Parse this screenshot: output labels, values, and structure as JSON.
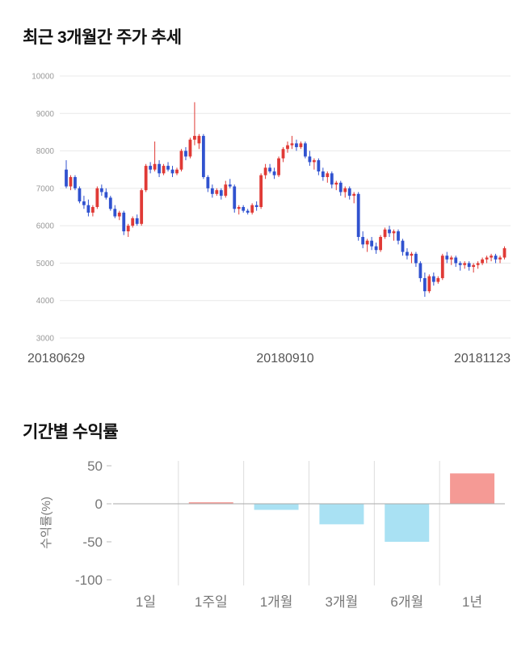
{
  "page": {
    "background": "#ffffff"
  },
  "sections": [
    {
      "title": "최근 3개월간 주가 추세"
    },
    {
      "title": "기간별 수익률"
    }
  ],
  "chart_data": [
    {
      "type": "candlestick",
      "title": "최근 3개월간 주가 추세",
      "ylim": [
        3000,
        10000
      ],
      "yticks": [
        10000,
        9000,
        8000,
        7000,
        6000,
        5000,
        4000,
        3000
      ],
      "xtick_labels": [
        "20180629",
        "20180910",
        "20181123"
      ],
      "up_color": "#e03a36",
      "down_color": "#3052cf",
      "grid_color": "#e9e9e9",
      "axis_text_color": "#999999",
      "label_color": "#555555",
      "grid": true,
      "candles": [
        [
          7500,
          7750,
          7000,
          7050
        ],
        [
          7050,
          7350,
          6950,
          7300
        ],
        [
          7300,
          7350,
          6950,
          7000
        ],
        [
          7000,
          7050,
          6600,
          6650
        ],
        [
          6650,
          6800,
          6450,
          6550
        ],
        [
          6550,
          6700,
          6250,
          6350
        ],
        [
          6350,
          6550,
          6250,
          6500
        ],
        [
          6500,
          7050,
          6450,
          7000
        ],
        [
          7000,
          7100,
          6800,
          6900
        ],
        [
          6900,
          7000,
          6700,
          6750
        ],
        [
          6750,
          6800,
          6400,
          6450
        ],
        [
          6450,
          6550,
          6200,
          6250
        ],
        [
          6250,
          6400,
          6150,
          6350
        ],
        [
          6350,
          6400,
          5750,
          5850
        ],
        [
          5850,
          6050,
          5700,
          6000
        ],
        [
          6000,
          6250,
          5950,
          6200
        ],
        [
          6200,
          6300,
          6000,
          6050
        ],
        [
          6050,
          7000,
          6000,
          6950
        ],
        [
          6950,
          7650,
          6900,
          7600
        ],
        [
          7600,
          7700,
          7400,
          7500
        ],
        [
          7500,
          8250,
          7450,
          7650
        ],
        [
          7650,
          7750,
          7300,
          7400
        ],
        [
          7400,
          7650,
          7350,
          7600
        ],
        [
          7600,
          7700,
          7450,
          7500
        ],
        [
          7500,
          7600,
          7300,
          7400
        ],
        [
          7400,
          7550,
          7350,
          7500
        ],
        [
          7500,
          8050,
          7450,
          8000
        ],
        [
          8000,
          8100,
          7750,
          7850
        ],
        [
          7850,
          8350,
          7800,
          8300
        ],
        [
          8300,
          9300,
          8150,
          8400
        ],
        [
          8200,
          8450,
          8050,
          8400
        ],
        [
          8400,
          8450,
          7250,
          7300
        ],
        [
          7300,
          7350,
          6900,
          7000
        ],
        [
          7000,
          7100,
          6750,
          6850
        ],
        [
          6850,
          7000,
          6800,
          6950
        ],
        [
          6950,
          7000,
          6700,
          6800
        ],
        [
          6800,
          7200,
          6750,
          7100
        ],
        [
          7100,
          7250,
          7000,
          7050
        ],
        [
          7050,
          7100,
          6350,
          6450
        ],
        [
          6450,
          6550,
          6300,
          6500
        ],
        [
          6500,
          6550,
          6350,
          6400
        ],
        [
          6400,
          6450,
          6300,
          6350
        ],
        [
          6350,
          6600,
          6300,
          6550
        ],
        [
          6550,
          6650,
          6400,
          6500
        ],
        [
          6500,
          7400,
          6450,
          7350
        ],
        [
          7350,
          7650,
          7250,
          7550
        ],
        [
          7550,
          7650,
          7400,
          7450
        ],
        [
          7450,
          7550,
          7250,
          7350
        ],
        [
          7350,
          7850,
          7300,
          7800
        ],
        [
          7800,
          8100,
          7700,
          8050
        ],
        [
          8050,
          8250,
          7950,
          8150
        ],
        [
          8150,
          8400,
          8050,
          8200
        ],
        [
          8200,
          8300,
          8000,
          8100
        ],
        [
          8100,
          8250,
          8050,
          8200
        ],
        [
          8200,
          8250,
          7800,
          7850
        ],
        [
          7850,
          8000,
          7600,
          7700
        ],
        [
          7700,
          7800,
          7500,
          7750
        ],
        [
          7750,
          7800,
          7350,
          7450
        ],
        [
          7450,
          7550,
          7200,
          7300
        ],
        [
          7300,
          7450,
          7150,
          7400
        ],
        [
          7400,
          7450,
          7000,
          7100
        ],
        [
          7100,
          7200,
          6950,
          7150
        ],
        [
          7150,
          7200,
          6800,
          6900
        ],
        [
          6900,
          7050,
          6750,
          7000
        ],
        [
          7000,
          7050,
          6700,
          6800
        ],
        [
          6800,
          6900,
          6600,
          6850
        ],
        [
          6850,
          6900,
          5600,
          5700
        ],
        [
          5700,
          5850,
          5400,
          5500
        ],
        [
          5500,
          5650,
          5300,
          5600
        ],
        [
          5600,
          5700,
          5350,
          5450
        ],
        [
          5450,
          5550,
          5250,
          5350
        ],
        [
          5350,
          5750,
          5300,
          5700
        ],
        [
          5700,
          5950,
          5650,
          5900
        ],
        [
          5900,
          6000,
          5700,
          5800
        ],
        [
          5800,
          5900,
          5600,
          5850
        ],
        [
          5850,
          5900,
          5500,
          5600
        ],
        [
          5600,
          5650,
          5200,
          5300
        ],
        [
          5300,
          5400,
          5100,
          5200
        ],
        [
          5200,
          5300,
          5000,
          5250
        ],
        [
          5250,
          5300,
          4900,
          5000
        ],
        [
          5000,
          5050,
          4500,
          4600
        ],
        [
          4600,
          4750,
          4100,
          4250
        ],
        [
          4250,
          4700,
          4200,
          4650
        ],
        [
          4650,
          4750,
          4400,
          4500
        ],
        [
          4500,
          4650,
          4450,
          4600
        ],
        [
          4600,
          5250,
          4550,
          5200
        ],
        [
          5200,
          5300,
          5000,
          5100
        ],
        [
          5100,
          5200,
          4950,
          5150
        ],
        [
          5150,
          5200,
          4900,
          5000
        ],
        [
          5000,
          5050,
          4800,
          4950
        ],
        [
          4950,
          5050,
          4850,
          5000
        ],
        [
          5000,
          5050,
          4800,
          4900
        ],
        [
          4900,
          5000,
          4750,
          4950
        ],
        [
          4950,
          5050,
          4850,
          5000
        ],
        [
          5000,
          5150,
          4950,
          5100
        ],
        [
          5100,
          5200,
          5000,
          5150
        ],
        [
          5150,
          5250,
          5050,
          5200
        ],
        [
          5200,
          5250,
          5000,
          5100
        ],
        [
          5100,
          5200,
          5000,
          5150
        ],
        [
          5150,
          5450,
          5100,
          5400
        ]
      ]
    },
    {
      "type": "bar",
      "title": "기간별 수익률",
      "categories": [
        "1일",
        "1주일",
        "1개월",
        "3개월",
        "6개월",
        "1년"
      ],
      "values": [
        0,
        2,
        -8,
        -27,
        -50,
        40
      ],
      "ylabel": "수익률(%)",
      "xlabel": "",
      "yticks": [
        50,
        0,
        -50,
        -100
      ],
      "ylim": [
        -100,
        50
      ],
      "grid": true,
      "legend": false,
      "positive_color": "#f59a95",
      "negative_color": "#a9e1f3",
      "grid_color": "#dddddd",
      "zero_line_color": "#aaaaaa",
      "tick_color": "#777777"
    }
  ]
}
